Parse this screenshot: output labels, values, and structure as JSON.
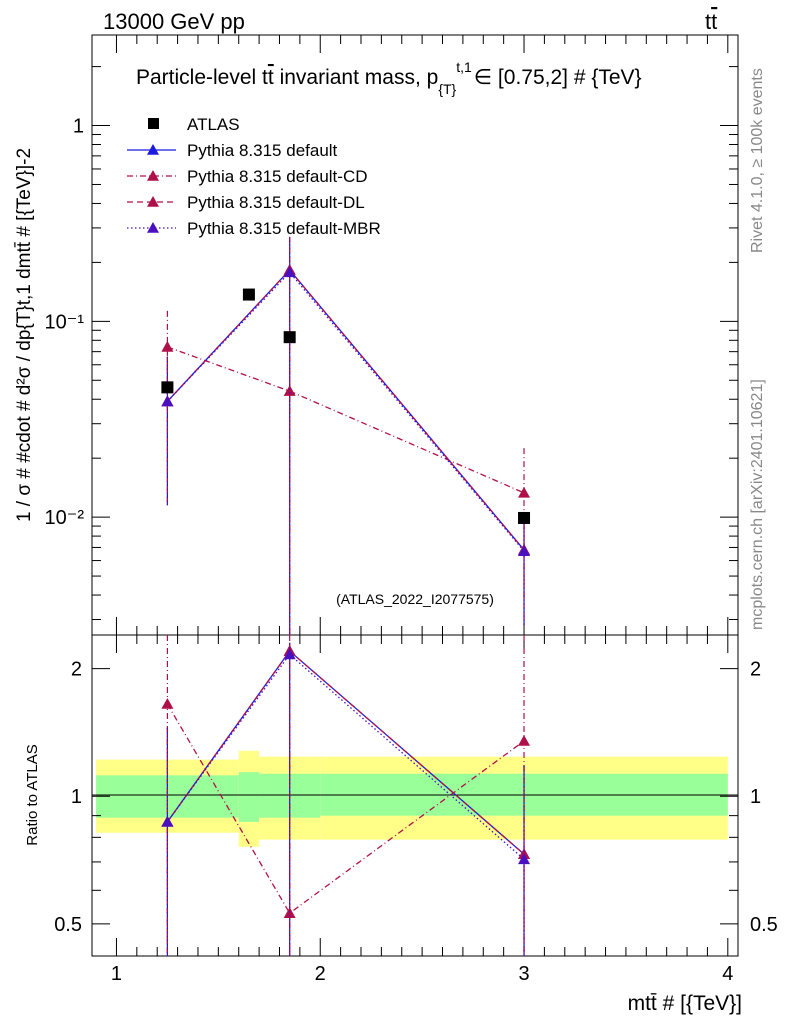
{
  "header": {
    "left_label": "13000 GeV pp",
    "right_label": "tt̄"
  },
  "side_labels": {
    "rivet": "Rivet 4.1.0, ≥ 100k events",
    "mcplots": "mcplots.cern.ch [arXiv:2401.10621]"
  },
  "chart_data": [
    {
      "type": "line",
      "panel": "main",
      "title": "Particle-level t̄t invariant mass, p_{T}^{t,1} ∈ [0.75,2] # {TeV}",
      "title_parts": {
        "prefix": "Particle-level t",
        "tbar": "t",
        "mid": " invariant mass, p",
        "sub": "{T}",
        "sup": "t,1",
        "suffix": "∈ [0.75,2] # {TeV}"
      },
      "ylabel": "1 / σ # #cdot # d²σ / dp_{T}^{t,1} dm^{tt̄} # [{TeV}]^{-2}",
      "ylabel_text": "1 / σ # #cdot # d²σ / dp{T}t,1 dmtt̄ # [{TeV}]-2",
      "yscale": "log",
      "ylim": [
        0.0025,
        2.9
      ],
      "xlim": [
        0.88,
        4.05
      ],
      "ytick_labels": [
        "1",
        "10⁻¹",
        "10⁻²"
      ],
      "ytick_values": [
        1,
        0.1,
        0.01
      ],
      "watermark": "(ATLAS_2022_I2077575)",
      "data": {
        "name": "ATLAS",
        "x": [
          1.25,
          1.65,
          1.85,
          3.0
        ],
        "y": [
          0.046,
          0.137,
          0.083,
          0.0099
        ]
      },
      "series": [
        {
          "name": "Pythia 8.315 default",
          "color": "#1a1ae0",
          "dash": "solid",
          "x": [
            1.25,
            1.85,
            3.0
          ],
          "y": [
            0.039,
            0.183,
            0.0068
          ],
          "err_low": [
            0.0115,
            0.0016,
            0.0028
          ],
          "err_high": [
            0.066,
            0.27,
            0.0105
          ]
        },
        {
          "name": "Pythia 8.315 default-CD",
          "color": "#b0104a",
          "dash": "dashdot",
          "x": [
            1.25,
            1.85,
            3.0
          ],
          "y": [
            0.074,
            0.044,
            0.0133
          ],
          "err_low": [
            0.036,
            0.0009,
            0.0039
          ],
          "err_high": [
            0.113,
            0.09,
            0.0225
          ]
        },
        {
          "name": "Pythia 8.315 default-DL",
          "color": "#b0104a",
          "dash": "dashed",
          "x": [
            1.25,
            1.85,
            3.0
          ],
          "y": [
            0.039,
            0.183,
            0.0068
          ],
          "err_low": [
            0.0115,
            0.0016,
            0.0028
          ],
          "err_high": [
            0.066,
            0.27,
            0.0105
          ]
        },
        {
          "name": "Pythia 8.315 default-MBR",
          "color": "#4a10c0",
          "dash": "dotted",
          "x": [
            1.25,
            1.85,
            3.0
          ],
          "y": [
            0.039,
            0.178,
            0.0067
          ],
          "err_low": [
            0.0115,
            0.0016,
            0.0028
          ],
          "err_high": [
            0.066,
            0.26,
            0.0102
          ]
        }
      ]
    },
    {
      "type": "line",
      "panel": "ratio",
      "ylabel": "Ratio to ATLAS",
      "xlabel": "m^{tt̄} # [{TeV}]",
      "xlabel_text": "mtt̄ # [{TeV}]",
      "yscale": "log",
      "ylim": [
        0.42,
        2.4
      ],
      "xlim": [
        0.88,
        4.05
      ],
      "xtick_labels": [
        "1",
        "2",
        "3",
        "4"
      ],
      "xtick_values": [
        1,
        2,
        3,
        4
      ],
      "ytick_labels": [
        "0.5",
        "1",
        "2"
      ],
      "ytick_values": [
        0.5,
        1,
        2
      ],
      "bands": [
        {
          "x0": 0.9,
          "x1": 1.6,
          "inner": [
            0.89,
            1.12
          ],
          "outer": [
            0.82,
            1.22
          ]
        },
        {
          "x0": 1.6,
          "x1": 1.7,
          "inner": [
            0.87,
            1.14
          ],
          "outer": [
            0.76,
            1.28
          ]
        },
        {
          "x0": 1.7,
          "x1": 2.0,
          "inner": [
            0.89,
            1.13
          ],
          "outer": [
            0.79,
            1.24
          ]
        },
        {
          "x0": 2.0,
          "x1": 4.0,
          "inner": [
            0.9,
            1.13
          ],
          "outer": [
            0.79,
            1.24
          ]
        }
      ],
      "series": [
        {
          "name": "Pythia 8.315 default",
          "color": "#1a1ae0",
          "dash": "solid",
          "x": [
            1.25,
            1.85,
            3.0
          ],
          "y": [
            0.87,
            2.2,
            0.73
          ],
          "err_low": [
            0.2,
            0.2,
            0.2
          ],
          "err_high": [
            1.45,
            2.3,
            1.18
          ]
        },
        {
          "name": "Pythia 8.315 default-CD",
          "color": "#b0104a",
          "dash": "dashdot",
          "x": [
            1.25,
            1.85,
            3.0
          ],
          "y": [
            1.65,
            0.53,
            1.35
          ],
          "err_low": [
            0.2,
            0.2,
            0.2
          ],
          "err_high": [
            2.4,
            2.4,
            2.4
          ]
        },
        {
          "name": "Pythia 8.315 default-DL",
          "color": "#b0104a",
          "dash": "dashed",
          "x": [
            1.25,
            1.85,
            3.0
          ],
          "y": [
            0.87,
            2.2,
            0.73
          ],
          "err_low": [
            0.2,
            0.2,
            0.2
          ],
          "err_high": [
            1.45,
            2.3,
            1.18
          ]
        },
        {
          "name": "Pythia 8.315 default-MBR",
          "color": "#4a10c0",
          "dash": "dotted",
          "x": [
            1.25,
            1.85,
            3.0
          ],
          "y": [
            0.87,
            2.16,
            0.71
          ],
          "err_low": [
            0.2,
            0.2,
            0.2
          ],
          "err_high": [
            1.45,
            2.3,
            1.18
          ]
        }
      ]
    }
  ]
}
